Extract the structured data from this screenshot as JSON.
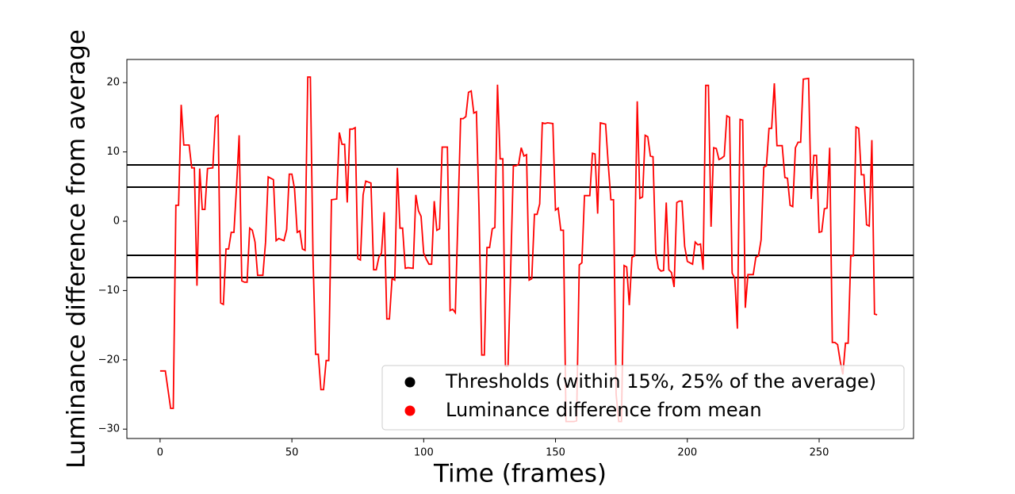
{
  "chart_data": {
    "type": "line",
    "xlabel": "Time (frames)",
    "ylabel": "Luminance difference from average",
    "x": [
      0,
      2,
      4,
      5,
      6,
      7,
      8,
      9,
      11,
      12,
      13,
      14,
      15,
      16,
      17,
      18,
      20,
      21,
      22,
      23,
      24,
      25,
      26,
      27,
      28,
      29,
      30,
      31,
      32,
      33,
      34,
      35,
      36,
      37,
      39,
      40,
      41,
      43,
      44,
      45,
      47,
      48,
      49,
      50,
      51,
      52,
      53,
      54,
      55,
      56,
      57,
      58,
      59,
      60,
      61,
      62,
      63,
      64,
      65,
      67,
      68,
      69,
      70,
      71,
      72,
      73,
      74,
      75,
      76,
      77,
      78,
      80,
      81,
      82,
      83,
      84,
      85,
      86,
      87,
      88,
      89,
      90,
      91,
      92,
      93,
      94,
      96,
      97,
      98,
      99,
      100,
      101,
      102,
      103,
      104,
      105,
      106,
      107,
      108,
      109,
      110,
      111,
      112,
      114,
      115,
      116,
      117,
      118,
      119,
      120,
      121,
      122,
      123,
      124,
      125,
      126,
      127,
      128,
      129,
      130,
      131,
      132,
      133,
      134,
      135,
      136,
      137,
      138,
      139,
      140,
      141,
      142,
      143,
      144,
      145,
      146,
      147,
      149,
      150,
      151,
      152,
      153,
      154,
      155,
      157,
      158,
      159,
      160,
      161,
      163,
      164,
      165,
      166,
      167,
      169,
      170,
      171,
      172,
      173,
      174,
      175,
      176,
      177,
      178,
      179,
      180,
      181,
      182,
      183,
      184,
      185,
      186,
      187,
      188,
      189,
      190,
      191,
      192,
      193,
      194,
      195,
      196,
      197,
      198,
      199,
      200,
      202,
      203,
      204,
      205,
      206,
      207,
      208,
      209,
      210,
      211,
      212,
      213,
      214,
      215,
      216,
      217,
      218,
      219,
      220,
      221,
      222,
      223,
      225,
      226,
      227,
      228,
      229,
      230,
      231,
      232,
      233,
      234,
      236,
      237,
      238,
      239,
      240,
      241,
      242,
      243,
      244,
      246,
      247,
      248,
      249,
      250,
      251,
      252,
      253,
      254,
      255,
      256,
      257,
      258,
      259,
      260,
      261,
      262,
      263,
      264,
      265,
      266,
      267,
      268,
      269,
      270,
      271,
      272
    ],
    "series": [
      {
        "name": "Luminance difference from mean",
        "color": "#ff0000",
        "values": [
          -21.6,
          -21.6,
          -27,
          -27,
          2.3,
          2.3,
          16.8,
          11,
          11,
          7.7,
          7.7,
          -9.3,
          7.6,
          1.7,
          1.7,
          7.6,
          7.7,
          15,
          15.3,
          -11.8,
          -12,
          -4,
          -4,
          -1.6,
          -1.6,
          5,
          12.4,
          -8.6,
          -8.8,
          -8.8,
          -1,
          -1.3,
          -3,
          -7.8,
          -7.8,
          -3,
          6.4,
          6,
          -2.8,
          -2.5,
          -2.8,
          -1.2,
          6.8,
          6.8,
          4.7,
          -1.6,
          -1.4,
          -4,
          -4.2,
          20.8,
          20.8,
          -5,
          -19.2,
          -19.2,
          -24.3,
          -24.3,
          -20.1,
          -20.1,
          3.1,
          3.2,
          12.8,
          11.1,
          11.1,
          2.7,
          13.3,
          13.3,
          13.5,
          -5.4,
          -5.6,
          3.8,
          5.8,
          5.5,
          -7,
          -7,
          -5.2,
          -4.6,
          1.3,
          -14.1,
          -14.1,
          -8.3,
          -8.5,
          7.7,
          -1,
          -1,
          -6.8,
          -6.7,
          -6.8,
          3.8,
          1.5,
          0.7,
          -4.6,
          -5.5,
          -6.2,
          -6.2,
          2.9,
          -1.3,
          -1.1,
          10.7,
          10.7,
          10.7,
          -12.9,
          -12.7,
          -13.2,
          14.8,
          14.8,
          15.1,
          18.6,
          18.8,
          15.6,
          15.8,
          1.5,
          -19.3,
          -19.3,
          -3.8,
          -3.8,
          -1.1,
          -0.9,
          19.7,
          9,
          9,
          -20.9,
          -20.9,
          -7,
          8,
          8,
          8.2,
          10.6,
          9.4,
          9.6,
          -8.5,
          -8.3,
          1,
          1,
          2.5,
          14.2,
          14.1,
          14.2,
          14.1,
          1.6,
          1.9,
          -1.3,
          -1.3,
          -28.9,
          -28.9,
          -28.9,
          -28.8,
          -6.3,
          -6,
          3.7,
          3.7,
          9.8,
          9.7,
          1.1,
          14.2,
          14,
          8.3,
          3.1,
          3.1,
          -25,
          -28.9,
          -28.9,
          -6.4,
          -6.6,
          -12.1,
          -5.2,
          -5,
          17.3,
          3.3,
          3.5,
          12.4,
          12.2,
          9.4,
          9.3,
          -4.5,
          -6.8,
          -7.2,
          -7.1,
          2.7,
          -7,
          -7.4,
          -9.5,
          2.7,
          2.9,
          2.9,
          -3.6,
          -5.8,
          -6.2,
          -3,
          -3.4,
          -3.3,
          -7,
          19.6,
          19.6,
          -0.8,
          10.6,
          10.5,
          8.9,
          9.1,
          9.4,
          15.2,
          15,
          -7.5,
          -8.2,
          -15.5,
          14.7,
          14.6,
          -12.5,
          -7.7,
          -7.7,
          -5.2,
          -5,
          -2.7,
          7.8,
          8,
          13.4,
          13.4,
          19.9,
          10.9,
          10.9,
          6.3,
          6.2,
          2.3,
          2.1,
          10.6,
          11.4,
          11.4,
          20.5,
          20.6,
          3.2,
          9.5,
          9.5,
          -1.6,
          -1.5,
          1.8,
          1.9,
          10.6,
          -17.5,
          -17.5,
          -17.8,
          -20.2,
          -22.1,
          -17.6,
          -17.6,
          -5,
          -5,
          13.6,
          13.4,
          6.7,
          6.7,
          -0.5,
          -0.7,
          11.7,
          -13.4,
          -13.5
        ]
      }
    ],
    "thresholds": {
      "name": "Thresholds (within 15%, 25% of the average)",
      "color": "#000000",
      "values": [
        8.12,
        4.92,
        -4.92,
        -8.12
      ]
    },
    "xlim": [
      -12.6,
      285.8
    ],
    "ylim": [
      -31.35,
      23.34
    ],
    "xticks": [
      0,
      50,
      100,
      150,
      200,
      250
    ],
    "yticks": [
      {
        "value": -30,
        "label": "−30"
      },
      {
        "value": -20,
        "label": "−20"
      },
      {
        "value": -10,
        "label": "−10"
      },
      0,
      10,
      20
    ],
    "legend": "lower right"
  }
}
